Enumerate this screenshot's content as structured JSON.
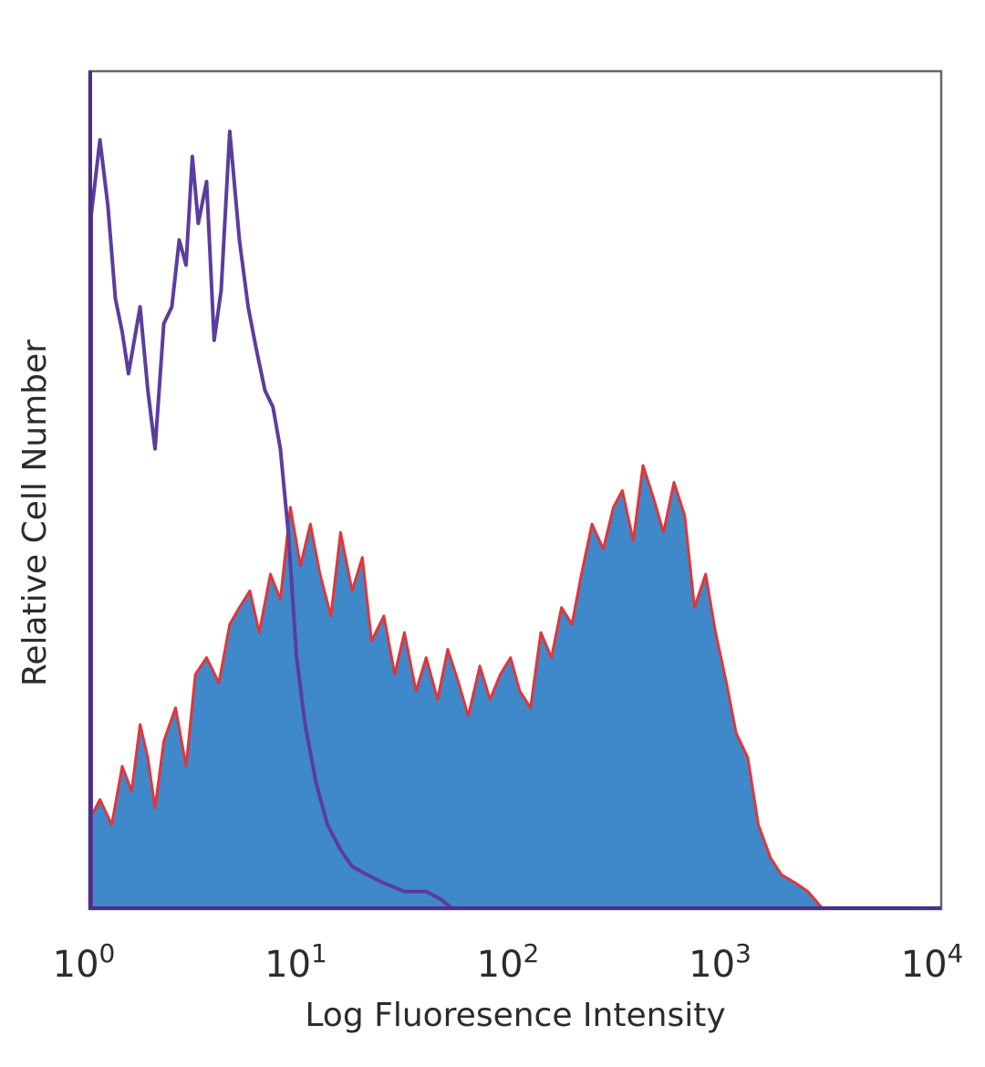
{
  "chart_data": {
    "type": "area",
    "title": "",
    "xlabel": "Log Fluoresence Intensity",
    "ylabel": "Relative Cell Number",
    "x_scale": "log10",
    "xlim": [
      1,
      10000
    ],
    "ylim": [
      0,
      1
    ],
    "grid": false,
    "legend": "none",
    "x_ticks": [
      {
        "base": "10",
        "exp": "0"
      },
      {
        "base": "10",
        "exp": "1"
      },
      {
        "base": "10",
        "exp": "2"
      },
      {
        "base": "10",
        "exp": "3"
      },
      {
        "base": "10",
        "exp": "4"
      }
    ],
    "series": [
      {
        "style": "outline",
        "color": "#5b3d9e",
        "x": [
          1.0,
          1.1,
          1.2,
          1.3,
          1.4,
          1.5,
          1.7,
          1.85,
          2.0,
          2.2,
          2.4,
          2.6,
          2.8,
          3.0,
          3.2,
          3.5,
          3.8,
          4.1,
          4.5,
          5.0,
          5.5,
          6.0,
          6.6,
          7.2,
          7.8,
          8.5,
          9.3,
          10.2,
          11.5,
          13.0,
          15.0,
          17.0,
          20.0,
          24.0,
          30.0,
          38.0,
          45.0,
          50.0,
          100.0,
          10000.0
        ],
        "y": [
          0.83,
          0.92,
          0.84,
          0.73,
          0.69,
          0.64,
          0.72,
          0.62,
          0.55,
          0.7,
          0.72,
          0.8,
          0.77,
          0.9,
          0.82,
          0.87,
          0.68,
          0.74,
          0.93,
          0.8,
          0.72,
          0.67,
          0.62,
          0.6,
          0.55,
          0.45,
          0.3,
          0.22,
          0.15,
          0.1,
          0.07,
          0.05,
          0.04,
          0.03,
          0.02,
          0.02,
          0.01,
          0.0,
          0.0,
          0.0
        ]
      },
      {
        "style": "filled",
        "color": "#3f88c9",
        "edge_color": "#e0363a",
        "x": [
          1.0,
          1.1,
          1.25,
          1.4,
          1.55,
          1.7,
          1.85,
          2.0,
          2.2,
          2.5,
          2.8,
          3.1,
          3.5,
          4.0,
          4.5,
          5.0,
          5.6,
          6.2,
          7.0,
          7.8,
          8.7,
          9.7,
          10.8,
          12.0,
          13.5,
          15.0,
          17.0,
          19.0,
          21.0,
          24.0,
          27.0,
          30.0,
          34.0,
          38.0,
          43.0,
          48.0,
          54.0,
          60.0,
          68.0,
          76.0,
          85.0,
          95.0,
          105.0,
          118.0,
          132.0,
          148.0,
          165.0,
          185.0,
          205.0,
          230.0,
          260.0,
          290.0,
          320.0,
          360.0,
          400.0,
          450.0,
          500.0,
          560.0,
          630.0,
          700.0,
          790.0,
          880.0,
          990.0,
          1100.0,
          1250.0,
          1400.0,
          1600.0,
          1800.0,
          2100.0,
          2400.0,
          2800.0,
          3100.0,
          10000.0
        ],
        "y": [
          0.11,
          0.13,
          0.1,
          0.17,
          0.14,
          0.22,
          0.18,
          0.12,
          0.2,
          0.24,
          0.17,
          0.28,
          0.3,
          0.27,
          0.34,
          0.36,
          0.38,
          0.33,
          0.4,
          0.37,
          0.48,
          0.41,
          0.46,
          0.4,
          0.35,
          0.45,
          0.38,
          0.42,
          0.32,
          0.35,
          0.28,
          0.33,
          0.26,
          0.3,
          0.25,
          0.31,
          0.27,
          0.23,
          0.29,
          0.25,
          0.28,
          0.3,
          0.26,
          0.24,
          0.33,
          0.3,
          0.36,
          0.34,
          0.4,
          0.46,
          0.43,
          0.48,
          0.5,
          0.44,
          0.53,
          0.49,
          0.45,
          0.51,
          0.47,
          0.36,
          0.4,
          0.33,
          0.27,
          0.21,
          0.18,
          0.1,
          0.06,
          0.04,
          0.03,
          0.02,
          0.0,
          0.0,
          0.0
        ]
      }
    ]
  }
}
